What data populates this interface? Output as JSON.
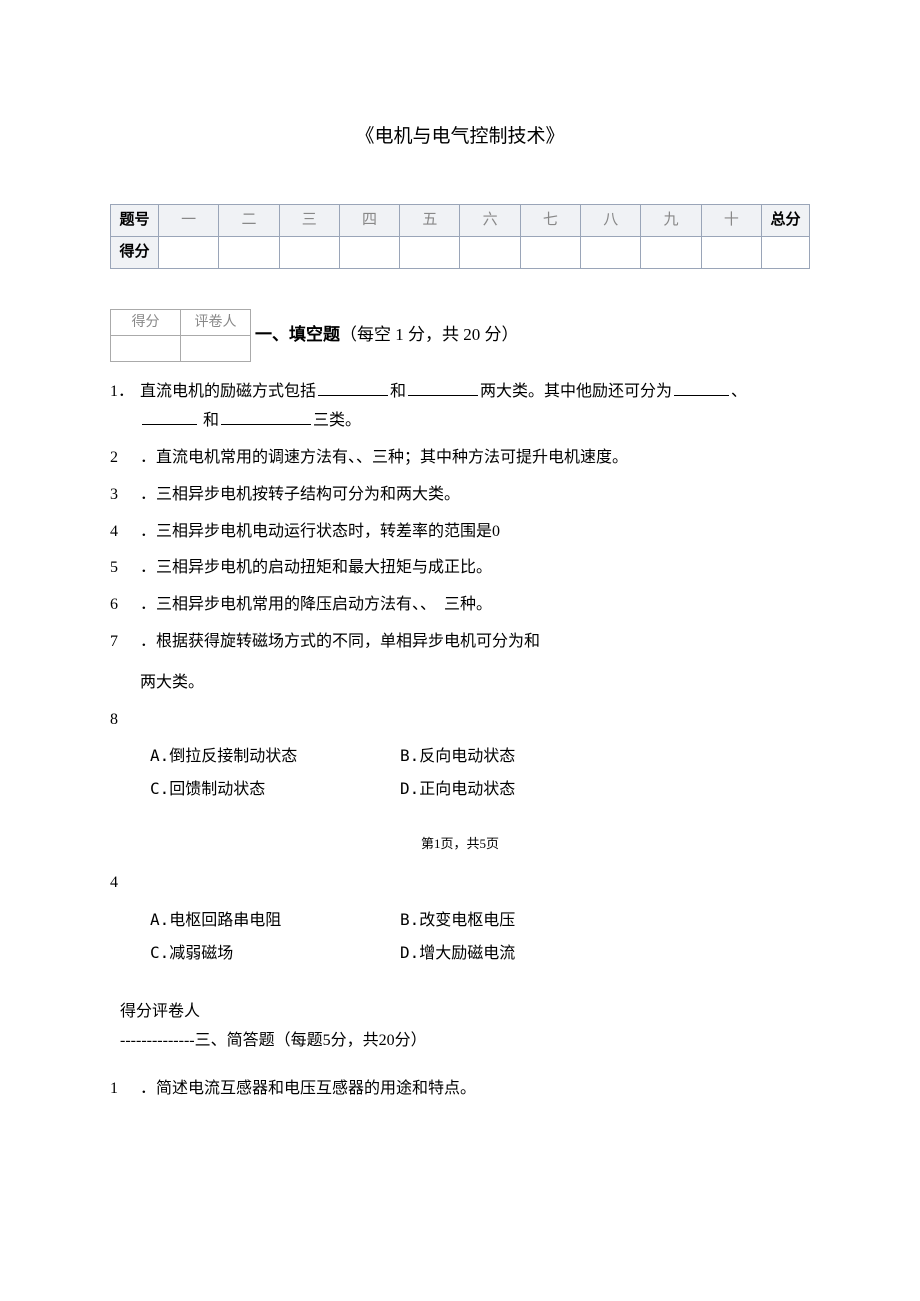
{
  "title": "电机与电气控制技术",
  "score_table": {
    "row_label_1": "题号",
    "row_label_2": "得分",
    "cols": [
      "一",
      "二",
      "三",
      "四",
      "五",
      "六",
      "七",
      "八",
      "九",
      "十"
    ],
    "total_label": "总分",
    "header_bg": "#f0f2f5",
    "border_color": "#9aa5b8"
  },
  "grader_box": {
    "c1": "得分",
    "c2": "评卷人"
  },
  "section1": {
    "num": "一、",
    "name": "填空题",
    "note": "（每空 1 分，共 20 分）"
  },
  "q1": {
    "num": "1．",
    "p1": "直流电机的励磁方式包括",
    "p2": "和",
    "p3": "两大类。其中他励还可分为",
    "p4": "、",
    "p5": "和",
    "p6": "三类。"
  },
  "q2": {
    "num": "2",
    "dot": " ．",
    "text": "直流电机常用的调速方法有、、三种；其中种方法可提升电机速度。"
  },
  "q3": {
    "num": "3",
    "dot": " ．",
    "text": "三相异步电机按转子结构可分为和两大类。"
  },
  "q4": {
    "num": "4",
    "dot": " ．",
    "text": "三相异步电机电动运行状态时，转差率的范围是0"
  },
  "q5": {
    "num": "5",
    "dot": " ．",
    "text": "三相异步电机的启动扭矩和最大扭矩与成正比。"
  },
  "q6": {
    "num": "6",
    "dot": " ．",
    "text": "三相异步电机常用的降压启动方法有、、　三种。"
  },
  "q7": {
    "num": "7",
    "dot": " ．",
    "text": "根据获得旋转磁场方式的不同，单相异步电机可分为和",
    "text2": "两大类。"
  },
  "q8": {
    "num": "8",
    "opts": {
      "a": "A.倒拉反接制动状态",
      "b": "B.反向电动状态",
      "c": "C.回馈制动状态",
      "d": "D.正向电动状态"
    }
  },
  "page_marker": "第1页，共5页",
  "q_bottom": {
    "num": "4",
    "opts": {
      "a": "A.电枢回路串电阻",
      "b": "B.改变电枢电压",
      "c": "C.减弱磁场",
      "d": "D.增大励磁电流"
    }
  },
  "section3": {
    "grader_line": "得分评卷人",
    "dashes": "--------------",
    "heading": "三、简答题（每题5分，共20分）"
  },
  "sq1": {
    "num": "1",
    "dot": " ．",
    "text": "简述电流互感器和电压互感器的用途和特点。"
  },
  "colors": {
    "text": "#000000",
    "muted": "#888888",
    "bg": "#ffffff"
  }
}
